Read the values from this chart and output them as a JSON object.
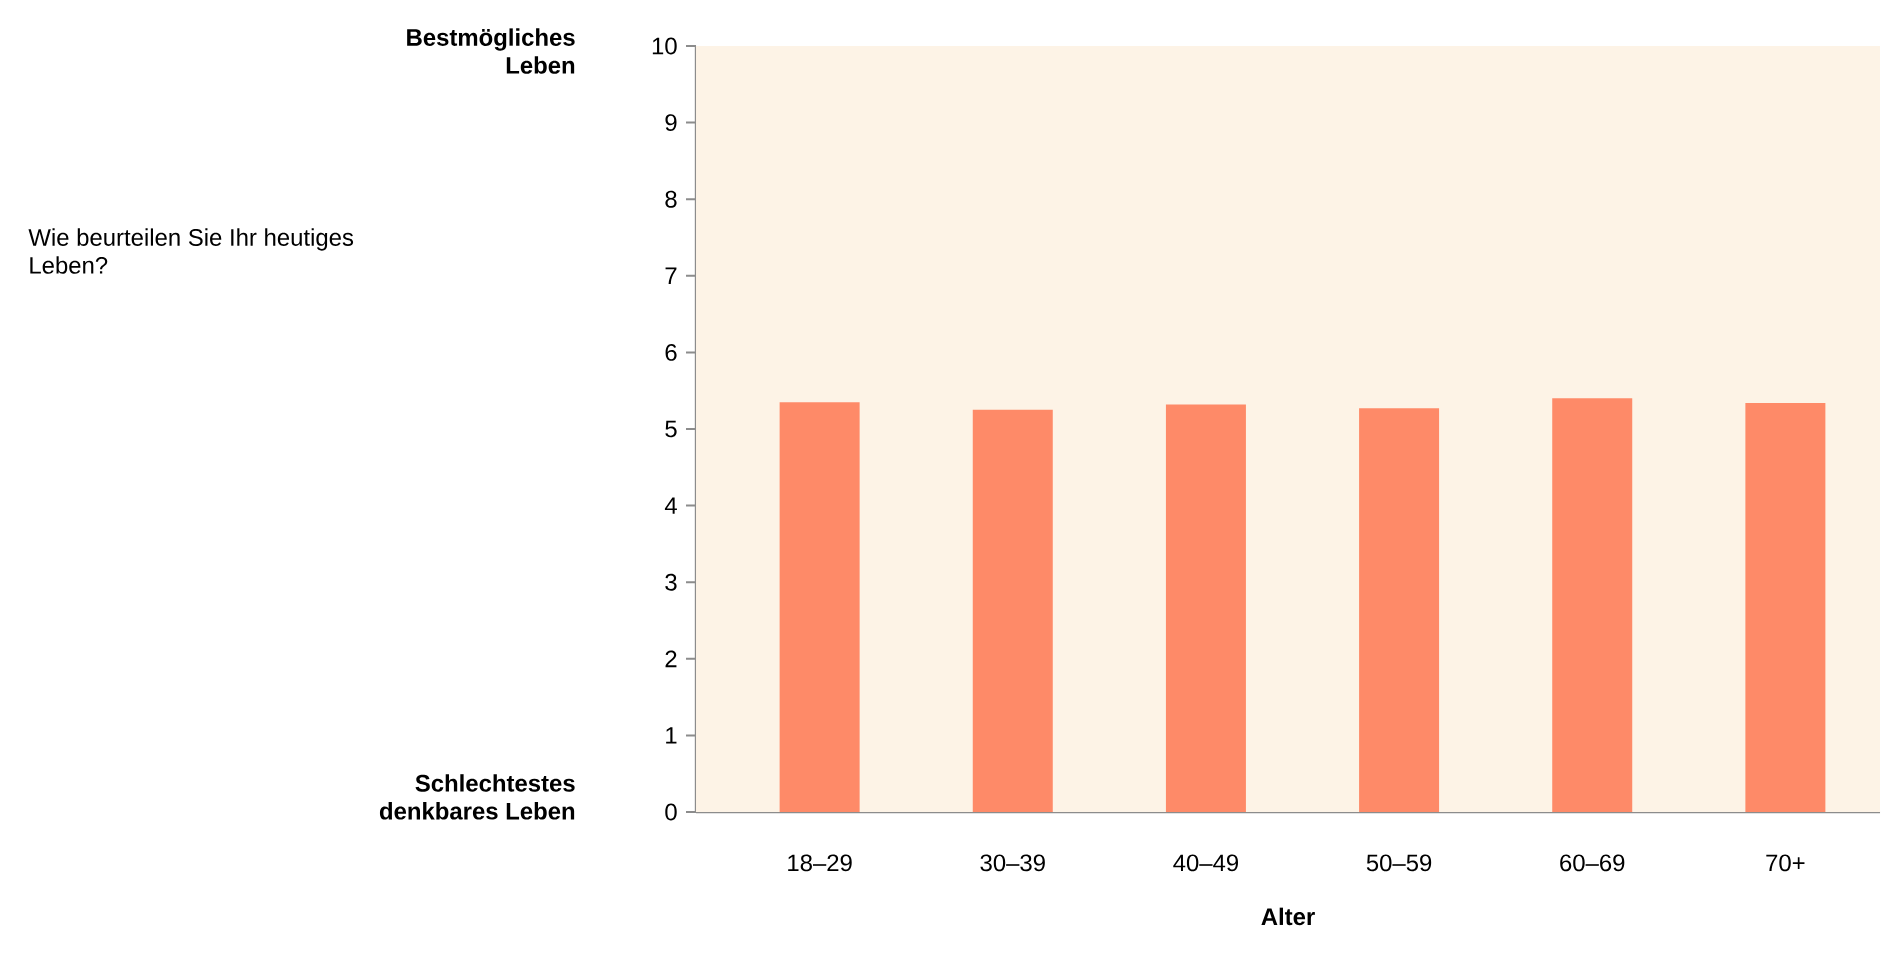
{
  "chart_data": {
    "type": "bar",
    "xlabel": "Alter",
    "categories": [
      "18–29",
      "30–39",
      "40–49",
      "50–59",
      "60–69",
      "70+"
    ],
    "values": [
      5.35,
      5.25,
      5.32,
      5.27,
      5.4,
      5.34
    ],
    "color": "#fe8a68",
    "ylim": [
      0,
      10
    ],
    "yticks": [
      0,
      1,
      2,
      3,
      4,
      5,
      6,
      7,
      8,
      9,
      10
    ],
    "annotations": [
      "Bestmögliches Leben",
      "Schlechtestes denkbares Leben",
      "Wie beurteilen Sie Ihr heutiges Leben?"
    ]
  }
}
